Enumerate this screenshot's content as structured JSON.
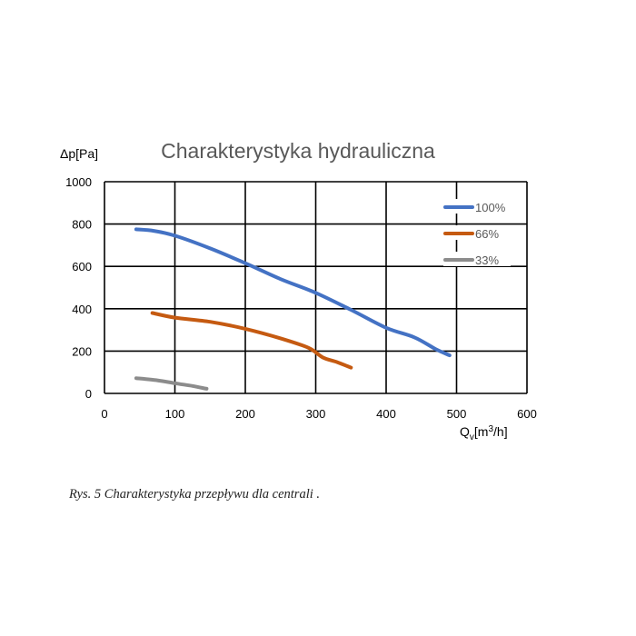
{
  "chart_data": {
    "type": "line",
    "title": "Charakterystyka hydrauliczna",
    "ylabel": "Δp[Pa]",
    "xlabel": {
      "main": "Q",
      "sub": "v",
      "unit_pre": "[m",
      "unit_sup": "3",
      "unit_post": "/h]"
    },
    "xlim": [
      0,
      600
    ],
    "ylim": [
      0,
      1000
    ],
    "xticks": [
      0,
      100,
      200,
      300,
      400,
      500,
      600
    ],
    "yticks": [
      0,
      200,
      400,
      600,
      800,
      1000
    ],
    "grid": true,
    "legend_position": "top-right",
    "series": [
      {
        "name": "100%",
        "color": "#4472c4",
        "points": [
          [
            45,
            775
          ],
          [
            70,
            768
          ],
          [
            100,
            745
          ],
          [
            150,
            685
          ],
          [
            200,
            615
          ],
          [
            250,
            540
          ],
          [
            300,
            475
          ],
          [
            350,
            395
          ],
          [
            400,
            310
          ],
          [
            440,
            265
          ],
          [
            470,
            210
          ],
          [
            490,
            180
          ]
        ]
      },
      {
        "name": "66%",
        "color": "#c55a11",
        "points": [
          [
            68,
            380
          ],
          [
            100,
            358
          ],
          [
            150,
            338
          ],
          [
            200,
            305
          ],
          [
            250,
            260
          ],
          [
            290,
            215
          ],
          [
            310,
            170
          ],
          [
            330,
            148
          ],
          [
            350,
            122
          ]
        ]
      },
      {
        "name": "33%",
        "color": "#8c8c8c",
        "points": [
          [
            45,
            72
          ],
          [
            75,
            62
          ],
          [
            100,
            48
          ],
          [
            125,
            35
          ],
          [
            145,
            22
          ]
        ]
      }
    ]
  },
  "caption": "Rys. 5 Charakterystyka przepływu dla centrali ."
}
